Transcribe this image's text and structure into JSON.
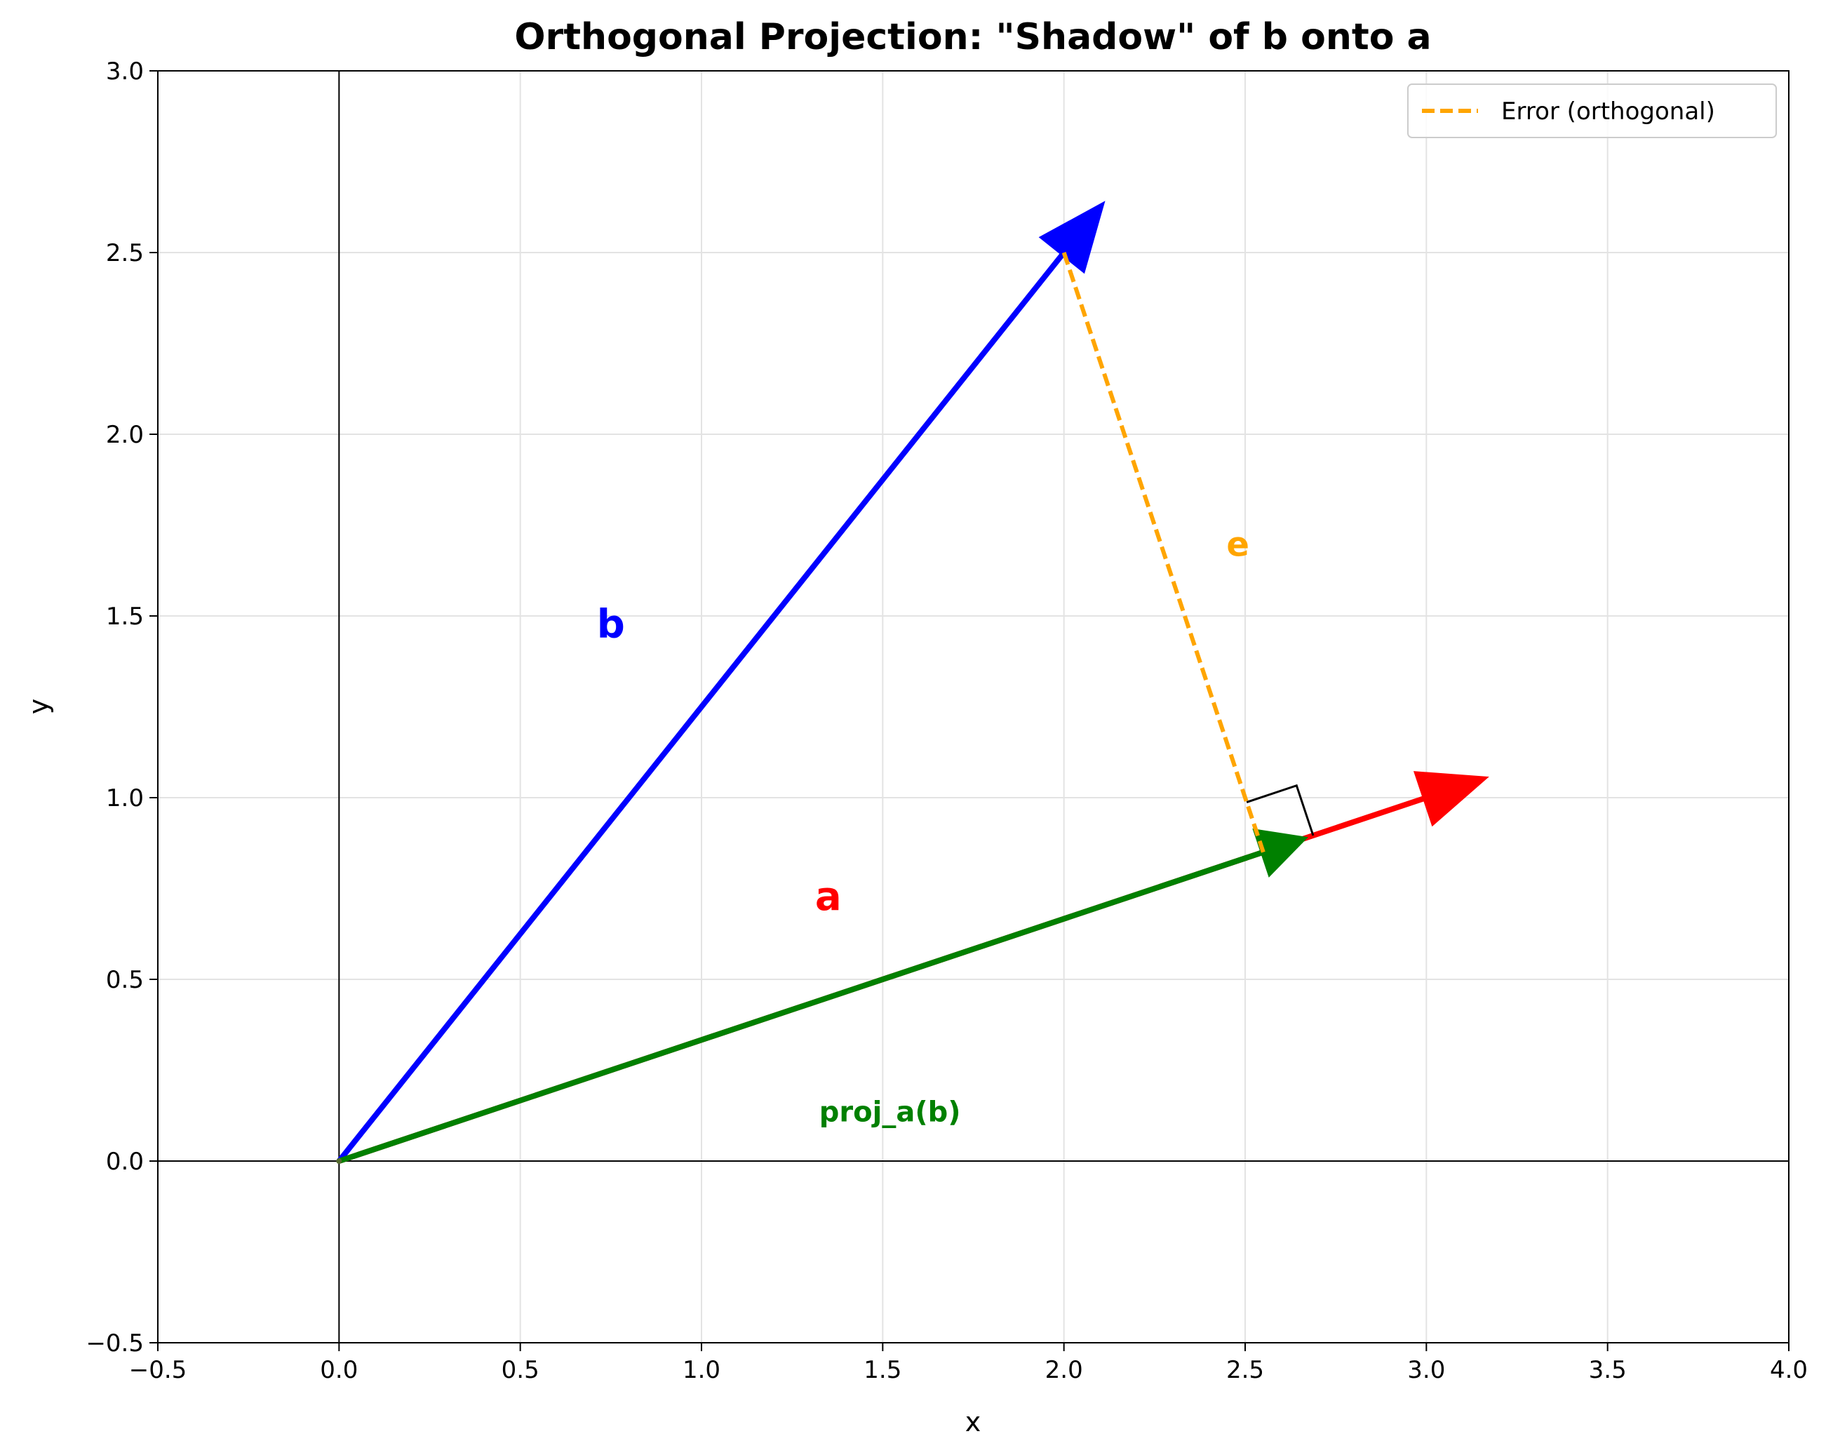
{
  "chart_data": {
    "type": "vector-plot",
    "title": "Orthogonal Projection: \"Shadow\" of b onto a",
    "xlabel": "x",
    "ylabel": "y",
    "xlim": [
      -0.5,
      4.0
    ],
    "ylim": [
      -0.5,
      3.0
    ],
    "xticks": [
      -0.5,
      0.0,
      0.5,
      1.0,
      1.5,
      2.0,
      2.5,
      3.0,
      3.5,
      4.0
    ],
    "yticks": [
      -0.5,
      0.0,
      0.5,
      1.0,
      1.5,
      2.0,
      2.5,
      3.0
    ],
    "xtick_labels": [
      "−0.5",
      "0.0",
      "0.5",
      "1.0",
      "1.5",
      "2.0",
      "2.5",
      "3.0",
      "3.5",
      "4.0"
    ],
    "ytick_labels": [
      "−0.5",
      "0.0",
      "0.5",
      "1.0",
      "1.5",
      "2.0",
      "2.5",
      "3.0"
    ],
    "grid": true,
    "legend_position": "top-right",
    "legend": [
      {
        "label": "Error (orthogonal)",
        "color": "#ffa500",
        "style": "dashed"
      }
    ],
    "vectors": [
      {
        "label": "a",
        "from": [
          0,
          0
        ],
        "to": [
          3,
          1
        ],
        "color": "#ff0000"
      },
      {
        "label": "b",
        "from": [
          0,
          0
        ],
        "to": [
          2,
          2.5
        ],
        "color": "#0000ff"
      },
      {
        "label": "proj_a(b)",
        "from": [
          0,
          0
        ],
        "to": [
          2.55,
          0.85
        ],
        "color": "#008000"
      }
    ],
    "error_line": {
      "label": "e",
      "from": [
        2,
        2.5
      ],
      "to": [
        2.55,
        0.85
      ],
      "color": "#ffa500"
    },
    "annotations": [
      {
        "text": "b",
        "x": 0.75,
        "y": 1.47,
        "color": "#0000ff"
      },
      {
        "text": "a",
        "x": 1.35,
        "y": 0.72,
        "color": "#ff0000"
      },
      {
        "text": "proj_a(b)",
        "x": 1.52,
        "y": 0.13,
        "color": "#008000"
      },
      {
        "text": "e",
        "x": 2.48,
        "y": 1.69,
        "color": "#ffa500"
      }
    ]
  }
}
